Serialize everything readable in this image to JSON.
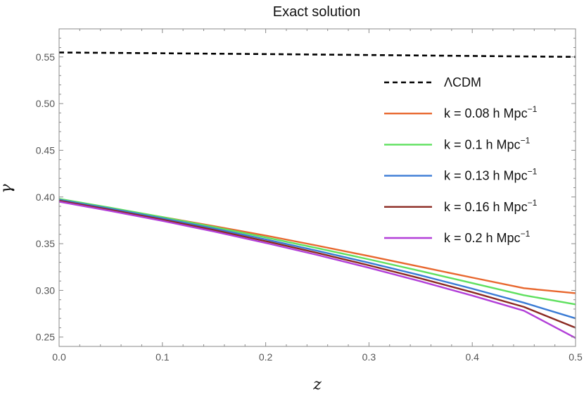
{
  "chart_data": {
    "type": "line",
    "title": "Exact solution",
    "xlabel": "z",
    "ylabel": "γ",
    "xlim": [
      0,
      0.5
    ],
    "ylim": [
      0.24,
      0.58
    ],
    "xticks": [
      "0.0",
      "0.1",
      "0.2",
      "0.3",
      "0.4",
      "0.5"
    ],
    "yticks": [
      "0.25",
      "0.30",
      "0.35",
      "0.40",
      "0.45",
      "0.50",
      "0.55"
    ],
    "grid": false,
    "legend_position": "right",
    "x": [
      0,
      0.05,
      0.1,
      0.15,
      0.2,
      0.25,
      0.3,
      0.35,
      0.4,
      0.45,
      0.5
    ],
    "series": [
      {
        "name": "ΛCDM",
        "label_main": "ΛCDM",
        "label_sup": "",
        "color": "#000000",
        "dash": "dashed",
        "values": [
          0.5547,
          0.5543,
          0.5539,
          0.5534,
          0.553,
          0.5525,
          0.552,
          0.5515,
          0.551,
          0.5505,
          0.55
        ]
      },
      {
        "name": "k = 0.08 h Mpc^-1",
        "label_main": "k = 0.08 h Mpc",
        "label_sup": "−1",
        "color": "#E8672E",
        "dash": "solid",
        "values": [
          0.397,
          0.3878,
          0.3785,
          0.3688,
          0.3587,
          0.3479,
          0.3367,
          0.3252,
          0.3137,
          0.3023,
          0.297
        ]
      },
      {
        "name": "k = 0.1 h Mpc^-1",
        "label_main": "k = 0.1 h Mpc",
        "label_sup": "−1",
        "color": "#5FE05F",
        "dash": "solid",
        "values": [
          0.398,
          0.3885,
          0.3785,
          0.3678,
          0.3567,
          0.3452,
          0.3332,
          0.3207,
          0.3078,
          0.2948,
          0.285
        ]
      },
      {
        "name": "k = 0.13 h Mpc^-1",
        "label_main": "k = 0.13 h Mpc",
        "label_sup": "−1",
        "color": "#3A7BD5",
        "dash": "solid",
        "values": [
          0.397,
          0.3874,
          0.3772,
          0.3662,
          0.3546,
          0.3424,
          0.3296,
          0.3161,
          0.3018,
          0.2868,
          0.27
        ]
      },
      {
        "name": "k = 0.16 h Mpc^-1",
        "label_main": "k = 0.16 h Mpc",
        "label_sup": "−1",
        "color": "#8B2A22",
        "dash": "solid",
        "values": [
          0.396,
          0.3862,
          0.3758,
          0.3646,
          0.3527,
          0.3401,
          0.3268,
          0.3128,
          0.298,
          0.2823,
          0.26
        ]
      },
      {
        "name": "k = 0.2 h Mpc^-1",
        "label_main": "k = 0.2 h Mpc",
        "label_sup": "−1",
        "color": "#B23FD8",
        "dash": "solid",
        "values": [
          0.395,
          0.385,
          0.3744,
          0.363,
          0.3508,
          0.3379,
          0.3242,
          0.3097,
          0.2944,
          0.2782,
          0.249
        ]
      }
    ]
  }
}
